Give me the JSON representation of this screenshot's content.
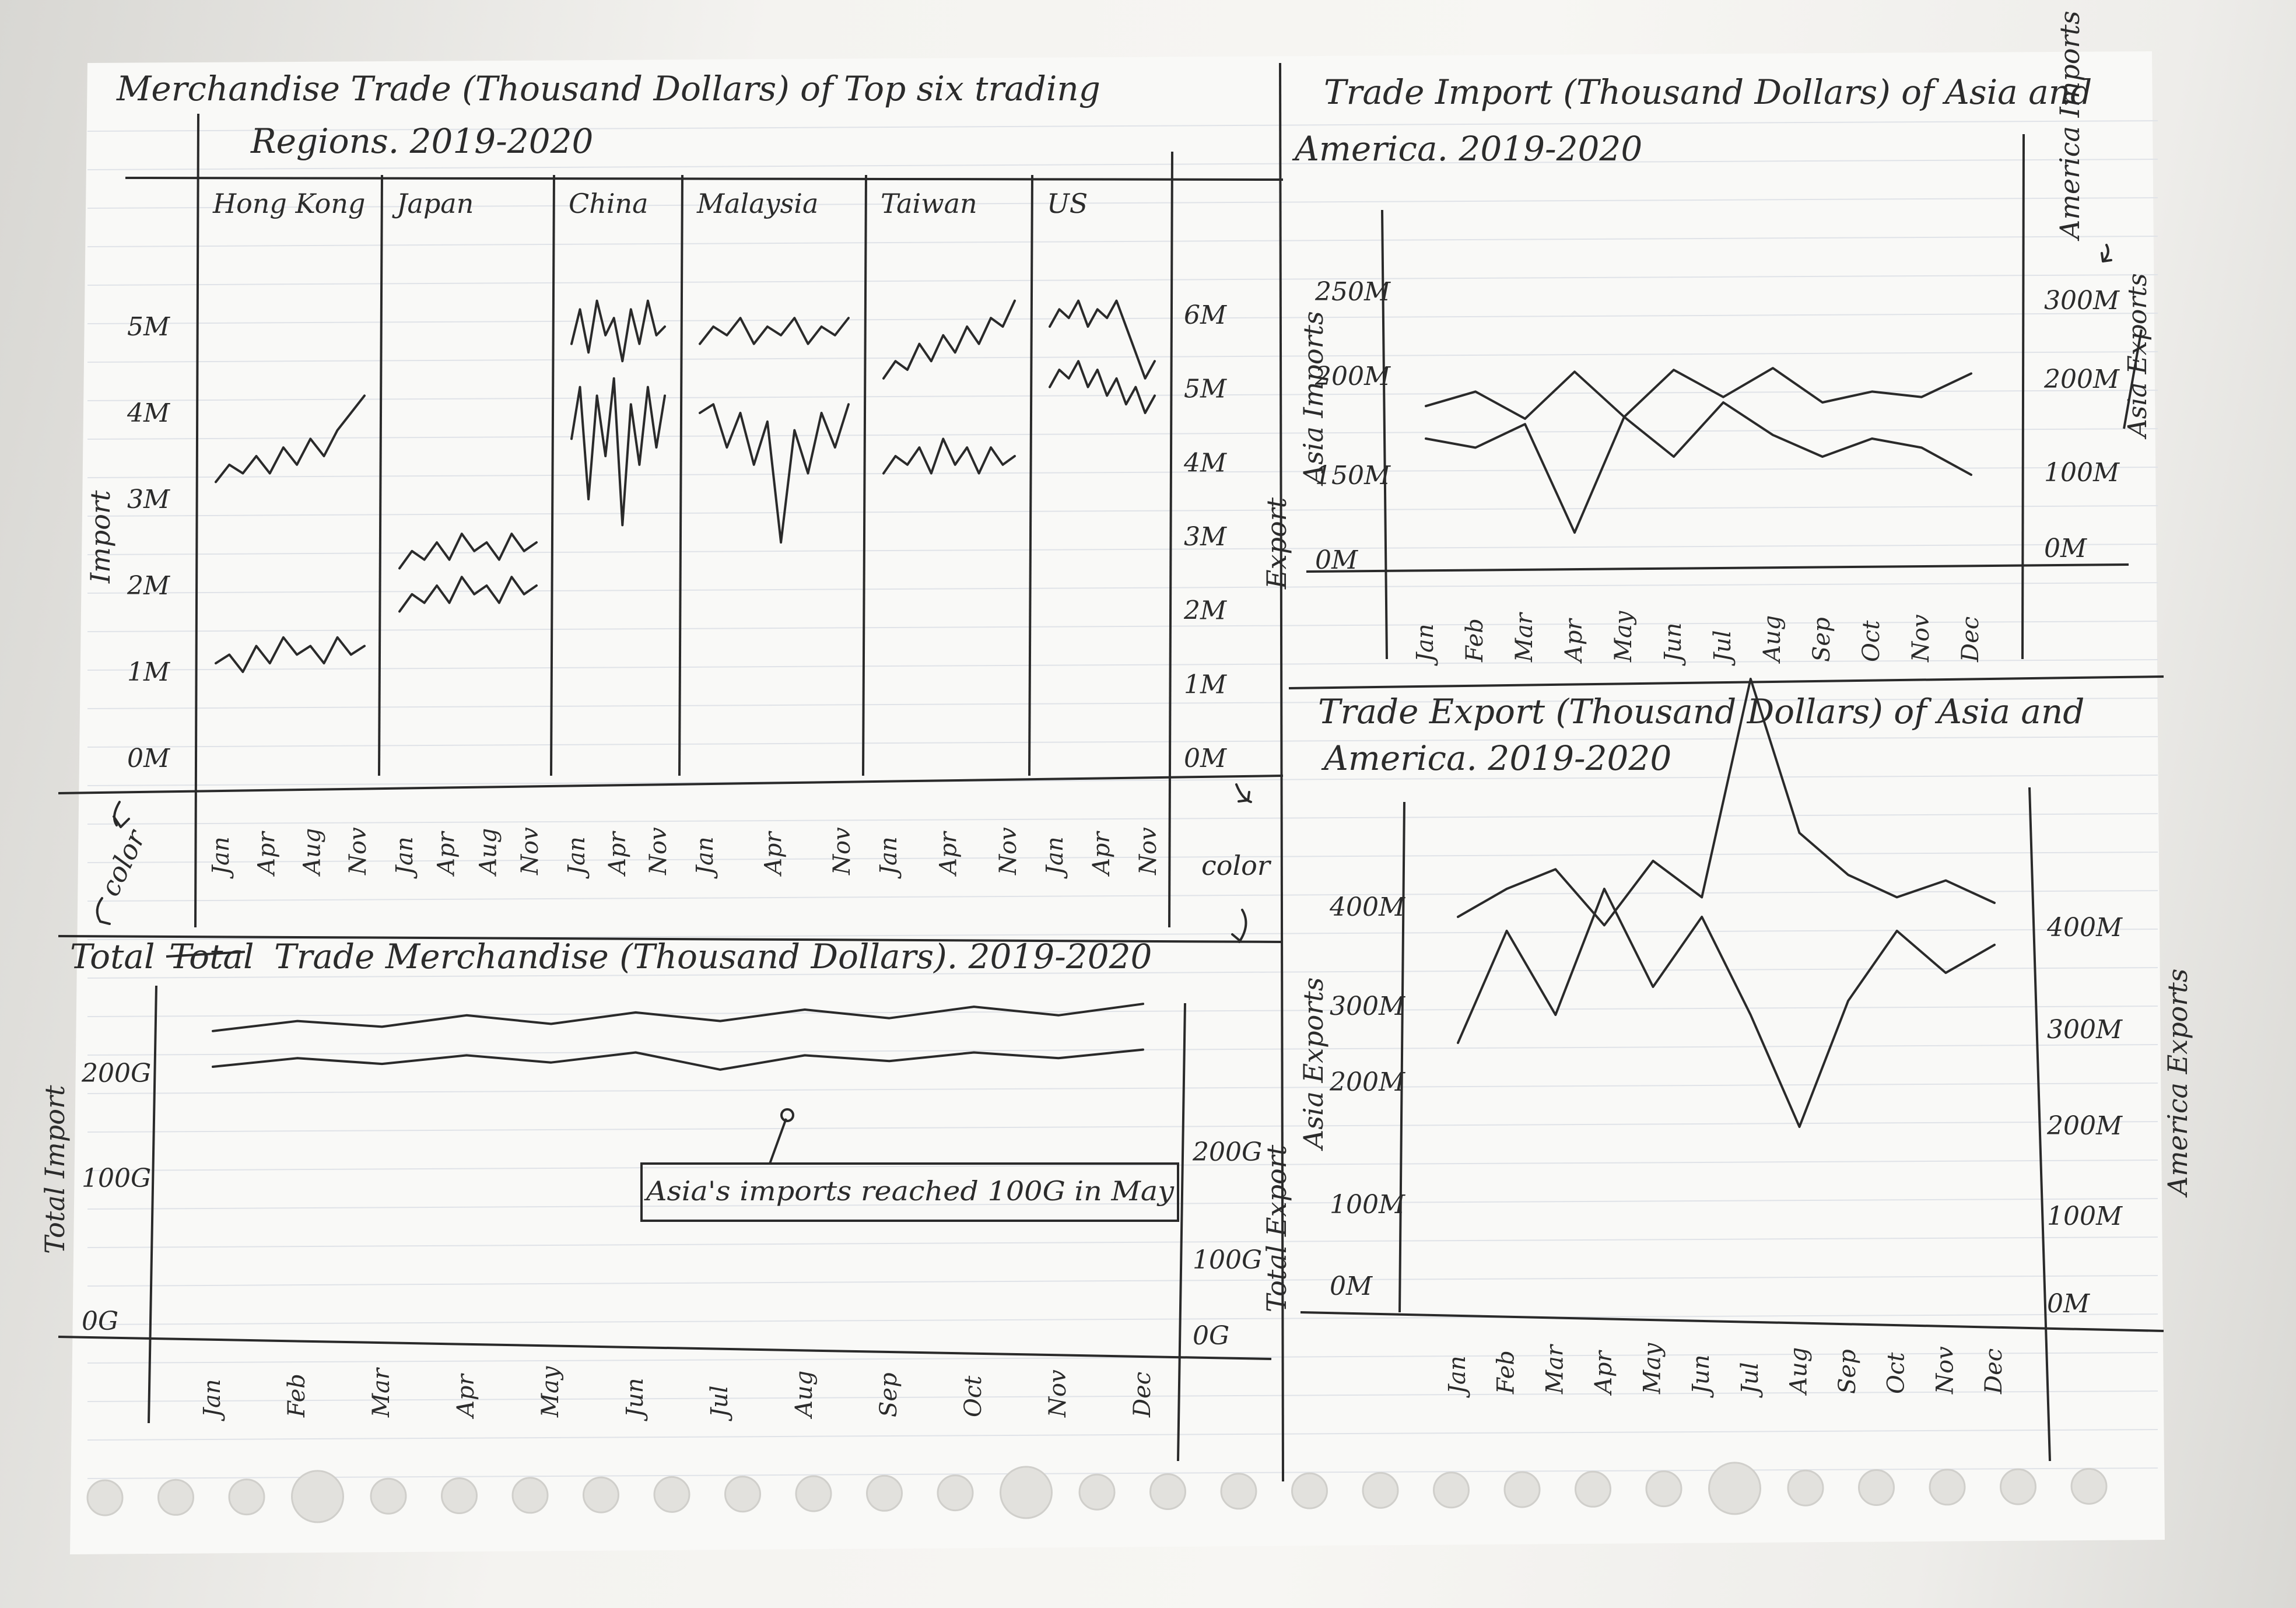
{
  "chart_data": [
    {
      "type": "line",
      "title": "Merchandise Trade (Thousand Dollars) of Top six trading Regions. 2019-2020",
      "ylabel": "Import",
      "y2label": "Export",
      "left_color_note": "color",
      "right_color_note": "color",
      "yticks": [
        "5M",
        "4M",
        "3M",
        "2M",
        "1M",
        "0M"
      ],
      "y2ticks": [
        "6M",
        "5M",
        "4M",
        "3M",
        "2M",
        "1M",
        "0M"
      ],
      "ylim": [
        0,
        6
      ],
      "panels": [
        {
          "name": "Hong Kong",
          "months": [
            "Jan",
            "Apr",
            "Aug",
            "Nov"
          ],
          "series": [
            [
              3.2,
              3.4,
              3.3,
              3.5,
              3.3,
              3.6,
              3.4,
              3.7,
              3.5,
              3.8,
              4.0,
              4.2
            ],
            [
              1.1,
              1.2,
              1.0,
              1.3,
              1.1,
              1.4,
              1.2,
              1.3,
              1.1,
              1.4,
              1.2,
              1.3
            ]
          ]
        },
        {
          "name": "Japan",
          "months": [
            "Jan",
            "Apr",
            "Aug",
            "Nov"
          ],
          "series": [
            [
              2.2,
              2.4,
              2.3,
              2.5,
              2.3,
              2.6,
              2.4,
              2.5,
              2.3,
              2.6,
              2.4,
              2.5
            ],
            [
              1.7,
              1.9,
              1.8,
              2.0,
              1.8,
              2.1,
              1.9,
              2.0,
              1.8,
              2.1,
              1.9,
              2.0
            ]
          ]
        },
        {
          "name": "China",
          "months": [
            "Jan",
            "Apr",
            "Nov"
          ],
          "series": [
            [
              4.8,
              5.2,
              4.7,
              5.3,
              4.9,
              5.1,
              4.6,
              5.2,
              4.8,
              5.3,
              4.9,
              5.0
            ],
            [
              3.7,
              4.3,
              3.0,
              4.2,
              3.5,
              4.4,
              2.7,
              4.1,
              3.4,
              4.3,
              3.6,
              4.2
            ]
          ]
        },
        {
          "name": "Malaysia",
          "months": [
            "Jan",
            "Apr",
            "Nov"
          ],
          "series": [
            [
              4.8,
              5.0,
              4.9,
              5.1,
              4.8,
              5.0,
              4.9,
              5.1,
              4.8,
              5.0,
              4.9,
              5.1
            ],
            [
              4.0,
              4.1,
              3.6,
              4.0,
              3.4,
              3.9,
              2.5,
              3.8,
              3.3,
              4.0,
              3.6,
              4.1
            ]
          ]
        },
        {
          "name": "Taiwan",
          "months": [
            "Jan",
            "Apr",
            "Nov"
          ],
          "series": [
            [
              4.4,
              4.6,
              4.5,
              4.8,
              4.6,
              4.9,
              4.7,
              5.0,
              4.8,
              5.1,
              5.0,
              5.3
            ],
            [
              3.3,
              3.5,
              3.4,
              3.6,
              3.3,
              3.7,
              3.4,
              3.6,
              3.3,
              3.6,
              3.4,
              3.5
            ]
          ]
        },
        {
          "name": "US",
          "months": [
            "Jan",
            "Apr",
            "Nov"
          ],
          "series": [
            [
              5.0,
              5.2,
              5.1,
              5.3,
              5.0,
              5.2,
              5.1,
              5.3,
              5.0,
              4.7,
              4.4,
              4.6
            ],
            [
              4.3,
              4.5,
              4.4,
              4.6,
              4.3,
              4.5,
              4.2,
              4.4,
              4.1,
              4.3,
              4.0,
              4.2
            ]
          ]
        }
      ]
    },
    {
      "type": "line",
      "title": "Trade Import (Thousand Dollars) of Asia and America. 2019-2020",
      "ylabel": "Asia Imports",
      "y2label": "America Imports",
      "yticks": [
        "250M",
        "200M",
        "150M",
        "0M"
      ],
      "y2ticks": [
        "300M",
        "200M",
        "100M",
        "0M"
      ],
      "right_axis_note": "Asia Exports",
      "categories": [
        "Jan",
        "Feb",
        "Mar",
        "Apr",
        "May",
        "Jun",
        "Jul",
        "Aug",
        "Sep",
        "Oct",
        "Nov",
        "Dec"
      ],
      "series": [
        {
          "values": [
            228,
            236,
            221,
            247,
            222,
            248,
            233,
            249,
            230,
            236,
            233,
            246
          ]
        },
        {
          "values": [
            210,
            205,
            218,
            158,
            222,
            200,
            230,
            212,
            200,
            210,
            205,
            190
          ]
        }
      ]
    },
    {
      "type": "line",
      "title": "Total Trade Merchandise (Thousand Dollars). 2019-2020",
      "title_struck_word": "Total",
      "ylabel": "Total Import",
      "y2label": "Total Export",
      "yticks": [
        "200G",
        "100G",
        "0G"
      ],
      "y2ticks": [
        "200G",
        "100G",
        "0G"
      ],
      "categories": [
        "Jan",
        "Feb",
        "Mar",
        "Apr",
        "May",
        "Jun",
        "Jul",
        "Aug",
        "Sep",
        "Oct",
        "Nov",
        "Dec"
      ],
      "annotation": "Asia's imports reached 100G in May",
      "series": [
        {
          "values": [
            205,
            212,
            208,
            216,
            210,
            218,
            212,
            220,
            214,
            222,
            216,
            224
          ]
        },
        {
          "values": [
            180,
            186,
            182,
            188,
            183,
            190,
            178,
            188,
            184,
            190,
            186,
            192
          ]
        }
      ]
    },
    {
      "type": "line",
      "title": "Trade Export (Thousand Dollars) of Asia and America. 2019-2020",
      "ylabel": "Asia Exports",
      "y2label": "America Exports",
      "yticks": [
        "400M",
        "300M",
        "200M",
        "100M",
        "0M"
      ],
      "y2ticks": [
        "400M",
        "300M",
        "200M",
        "100M",
        "0M"
      ],
      "categories": [
        "Jan",
        "Feb",
        "Mar",
        "Apr",
        "May",
        "Jun",
        "Jul",
        "Aug",
        "Sep",
        "Oct",
        "Nov",
        "Dec"
      ],
      "series": [
        {
          "values": [
            385,
            395,
            402,
            382,
            405,
            392,
            470,
            415,
            400,
            392,
            398,
            390
          ]
        },
        {
          "values": [
            340,
            380,
            350,
            395,
            360,
            385,
            350,
            310,
            355,
            380,
            365,
            375
          ]
        }
      ]
    }
  ]
}
